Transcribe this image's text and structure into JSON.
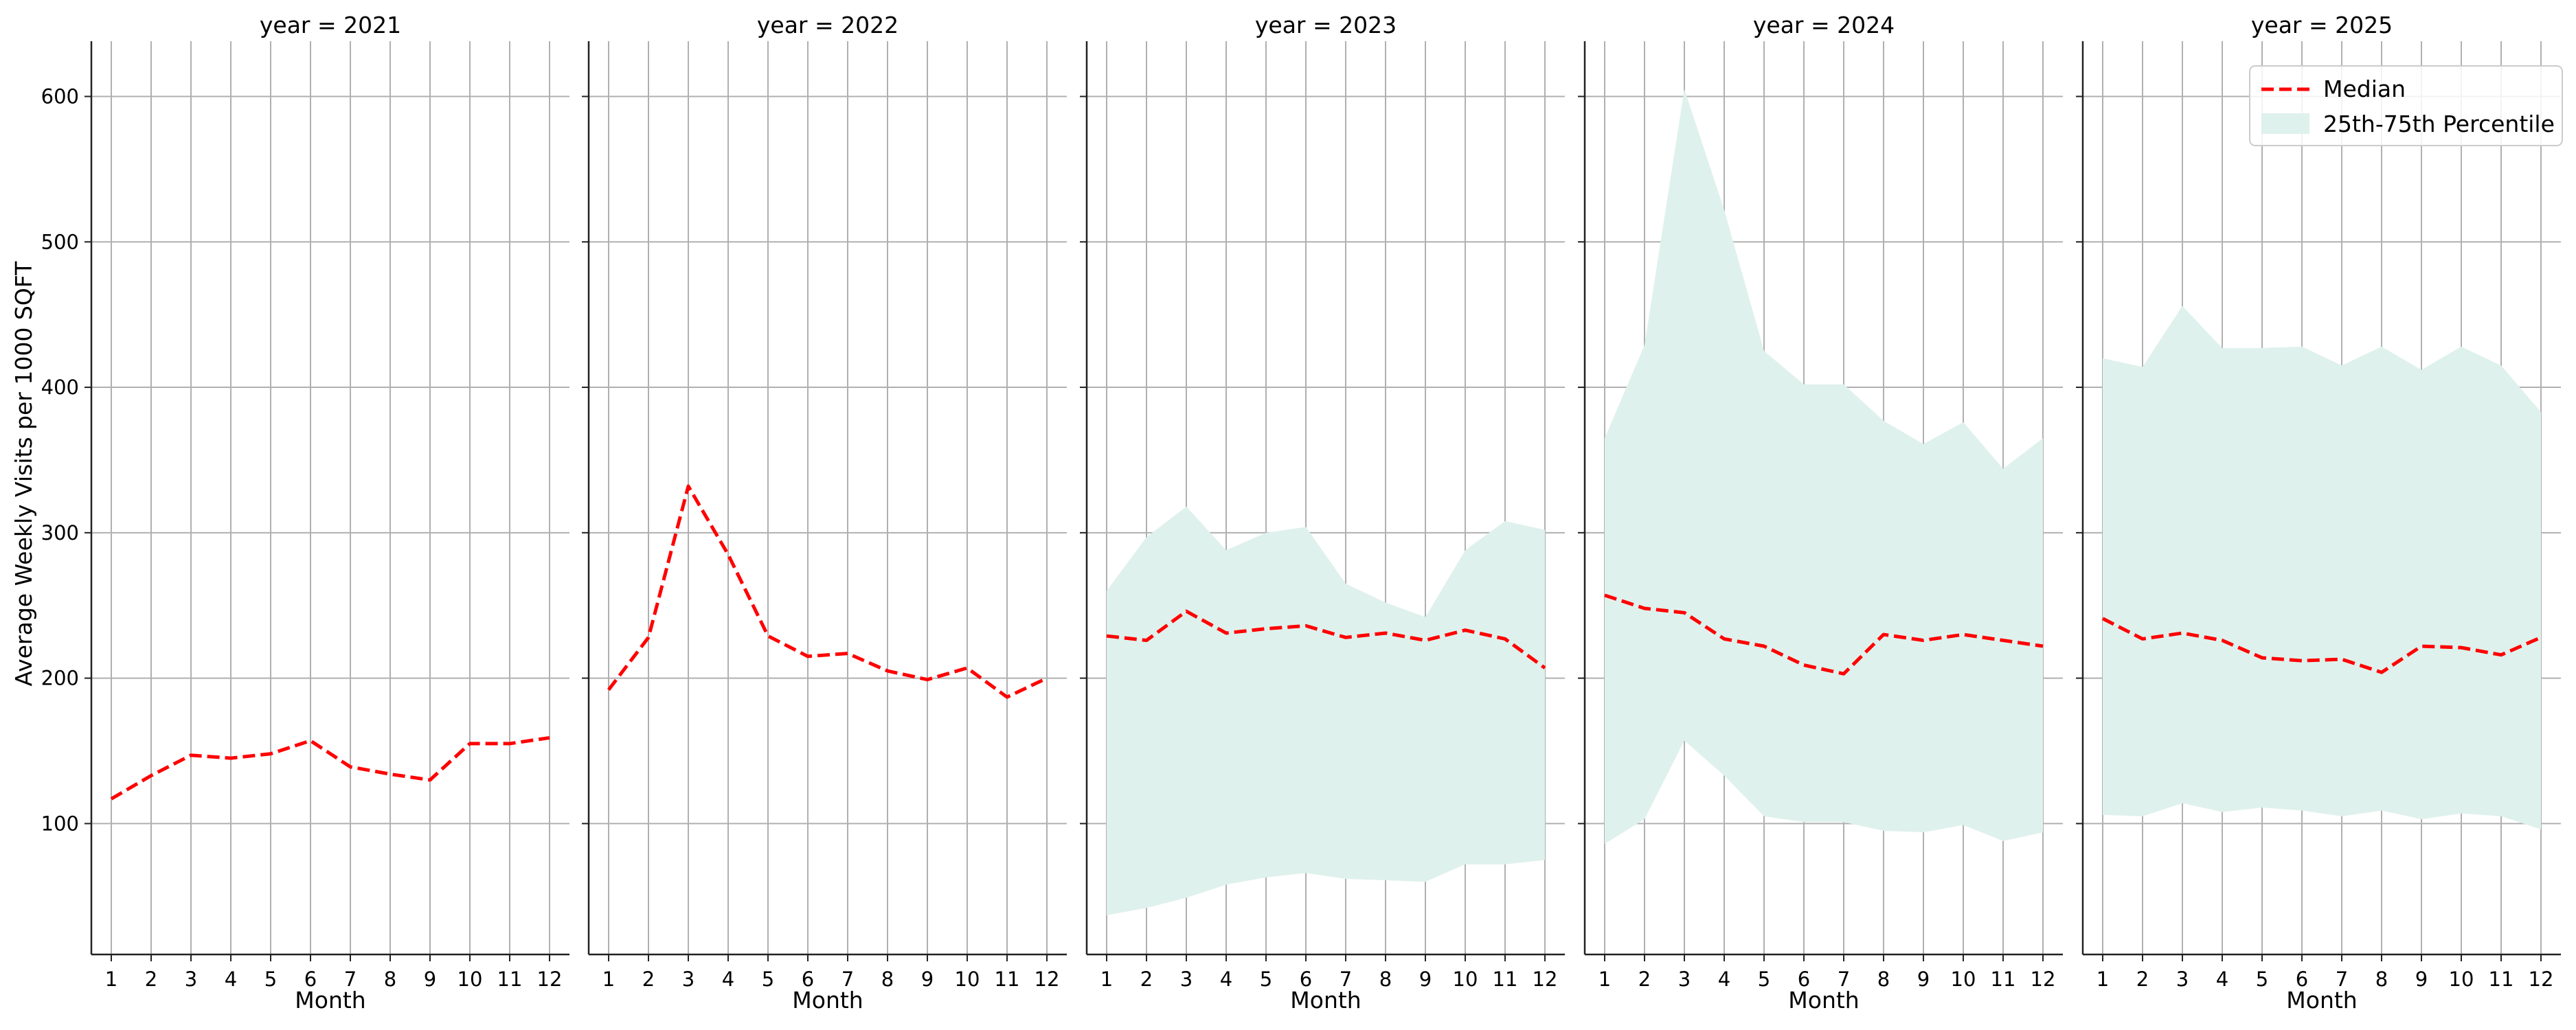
{
  "chart_data": {
    "type": "line",
    "ylabel": "Average Weekly Visits per 1000 SQFT",
    "xlabel": "Month",
    "ylim": [
      10,
      638
    ],
    "xlim": [
      0.5,
      12.5
    ],
    "yticks": [
      100,
      200,
      300,
      400,
      500,
      600
    ],
    "xticks": [
      1,
      2,
      3,
      4,
      5,
      6,
      7,
      8,
      9,
      10,
      11,
      12
    ],
    "grid": true,
    "legend": {
      "placement": "top-right",
      "entries": [
        "Median",
        "25th-75th Percentile"
      ]
    },
    "colors": {
      "median": "#ff0000",
      "band": "#dff1ec",
      "grid": "#b0b0b0",
      "spine": "#222222"
    },
    "panels": [
      {
        "title": "year = 2021",
        "median": [
          117,
          133,
          147,
          145,
          148,
          157,
          139,
          134,
          130,
          155,
          155,
          159
        ],
        "p25": null,
        "p75": null
      },
      {
        "title": "year = 2022",
        "median": [
          192,
          228,
          332,
          285,
          229,
          215,
          217,
          205,
          199,
          207,
          187,
          200
        ],
        "p25": null,
        "p75": null
      },
      {
        "title": "year = 2023",
        "median": [
          229,
          226,
          246,
          231,
          234,
          236,
          228,
          231,
          226,
          233,
          227,
          207
        ],
        "p25": [
          37,
          42,
          49,
          58,
          63,
          66,
          62,
          61,
          60,
          72,
          72,
          75
        ],
        "p75": [
          260,
          297,
          318,
          288,
          300,
          304,
          265,
          252,
          242,
          288,
          308,
          302
        ]
      },
      {
        "title": "year = 2024",
        "median": [
          257,
          248,
          245,
          227,
          222,
          209,
          203,
          230,
          226,
          230,
          226,
          222
        ],
        "p25": [
          86,
          103,
          157,
          133,
          105,
          101,
          101,
          95,
          94,
          99,
          88,
          94
        ],
        "p75": [
          365,
          429,
          605,
          522,
          425,
          402,
          402,
          377,
          361,
          376,
          344,
          365
        ]
      },
      {
        "title": "year = 2025",
        "median": [
          241,
          227,
          231,
          226,
          214,
          212,
          213,
          204,
          222,
          221,
          216,
          228
        ],
        "p25": [
          106,
          105,
          114,
          108,
          111,
          109,
          105,
          109,
          103,
          107,
          105,
          96
        ],
        "p75": [
          420,
          414,
          456,
          427,
          427,
          428,
          415,
          428,
          412,
          428,
          415,
          383
        ]
      }
    ]
  }
}
